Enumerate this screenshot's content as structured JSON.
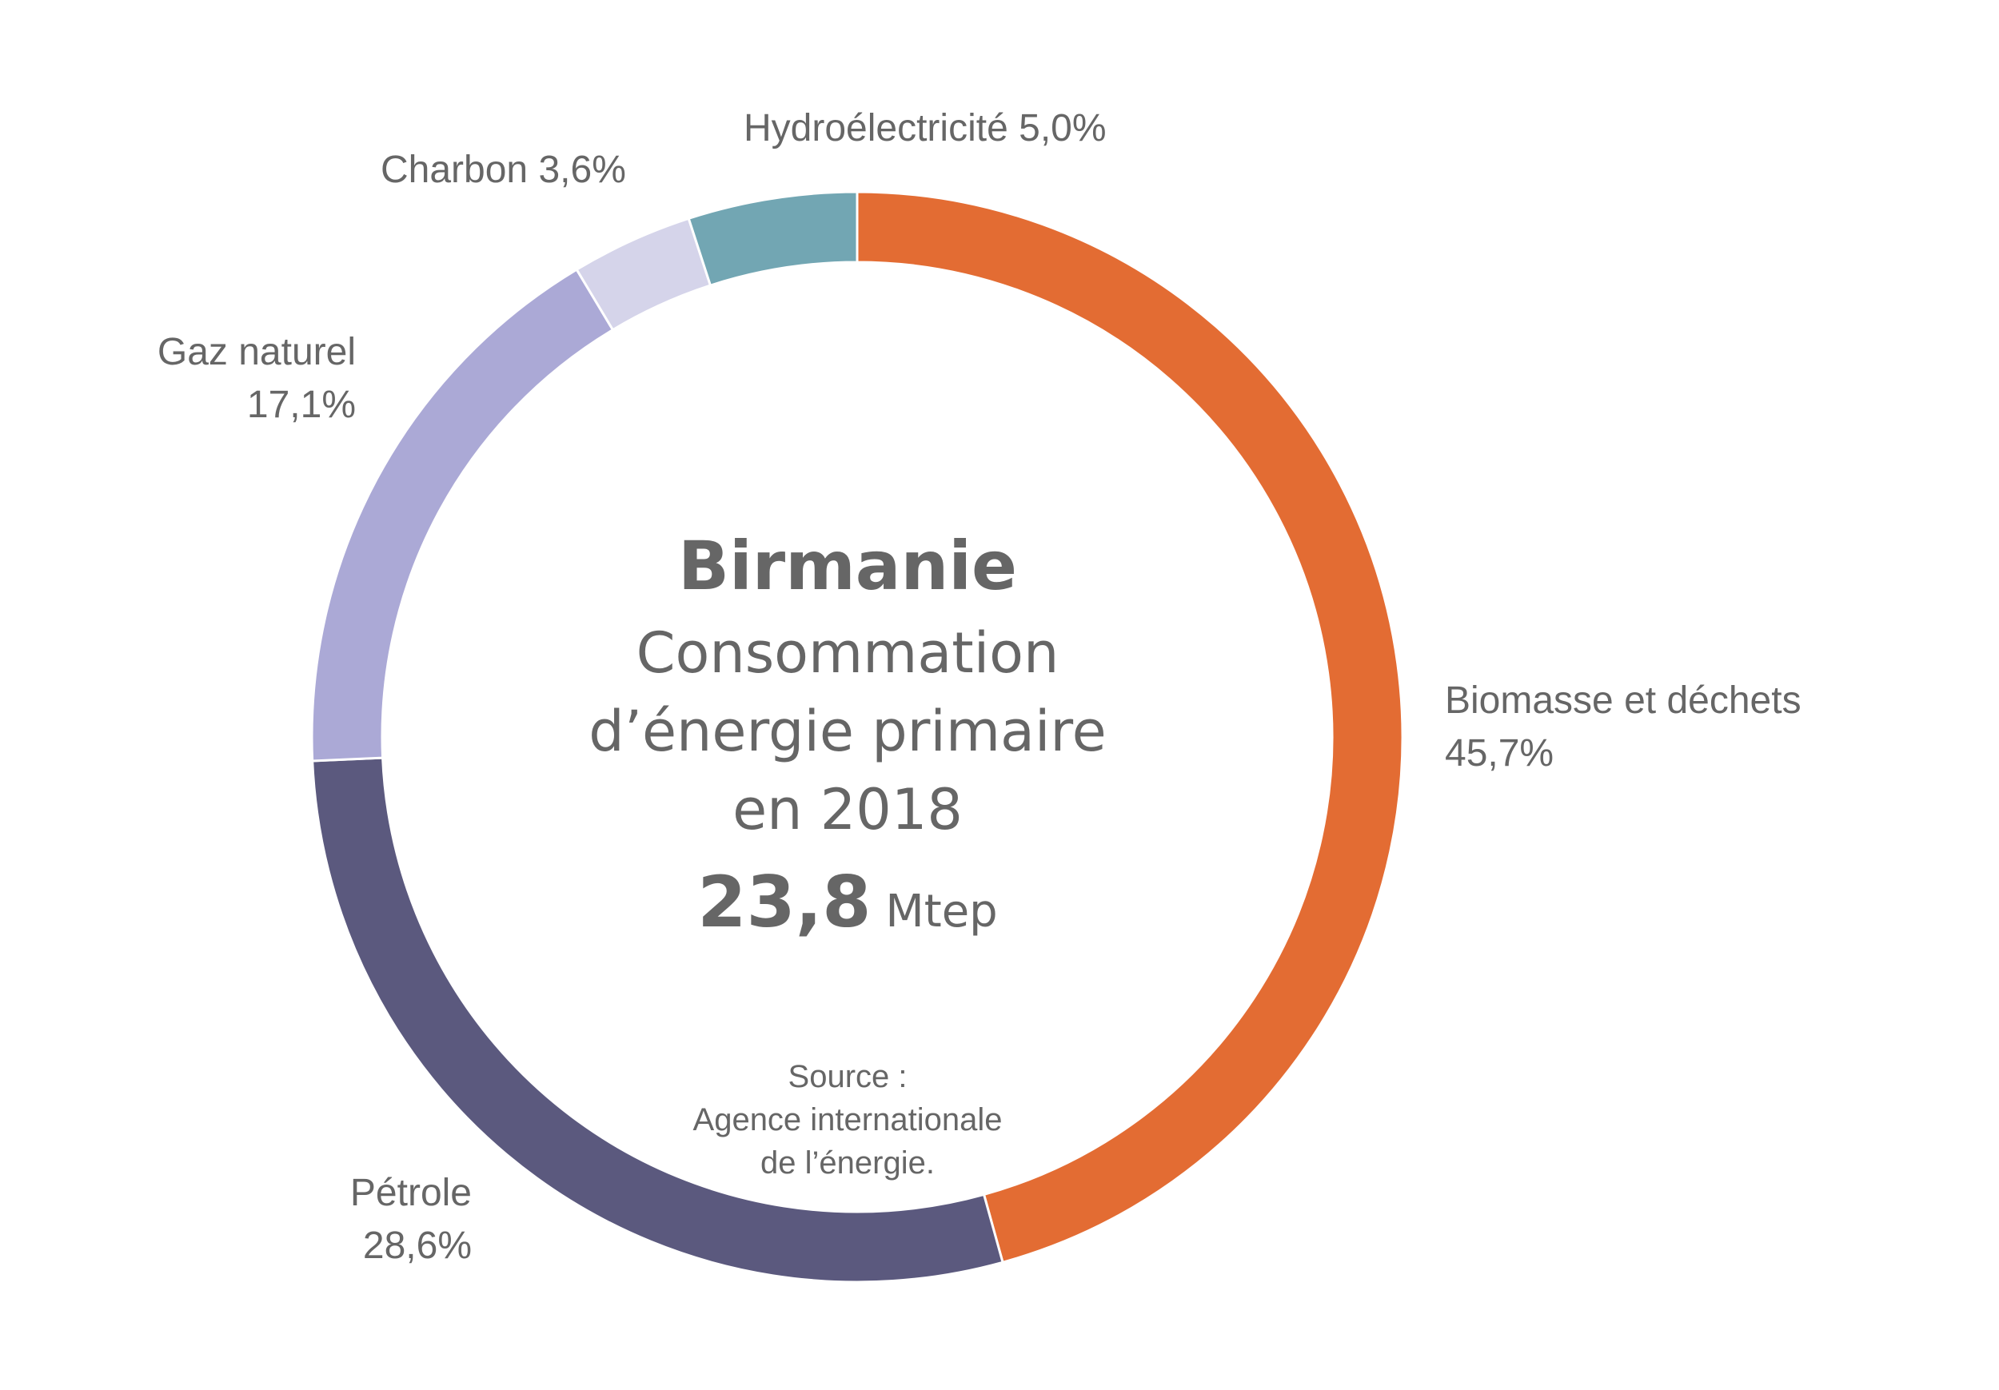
{
  "chart_data": {
    "type": "pie",
    "style": "donut",
    "start": "top",
    "direction": "clockwise",
    "slices": [
      {
        "name": "Biomasse et déchets",
        "value": 45.7,
        "label": "45,7%",
        "color": "#E36C33"
      },
      {
        "name": "Pétrole",
        "value": 28.6,
        "label": "28,6%",
        "color": "#5B597E"
      },
      {
        "name": "Gaz naturel",
        "value": 17.1,
        "label": "17,1%",
        "color": "#ABA9D6"
      },
      {
        "name": "Charbon",
        "value": 3.6,
        "label": "3,6%",
        "color": "#D5D4EA"
      },
      {
        "name": "Hydroélectricité",
        "value": 5.0,
        "label": "5,0%",
        "color": "#72A6B3"
      }
    ]
  },
  "center": {
    "country": "Birmanie",
    "line1": "Consommation",
    "line2": "d’énergie primaire",
    "line3": "en 2018",
    "total_value": "23,8",
    "total_unit": "Mtep"
  },
  "source": {
    "line1": "Source :",
    "line2": "Agence internationale",
    "line3": "de l’énergie."
  }
}
